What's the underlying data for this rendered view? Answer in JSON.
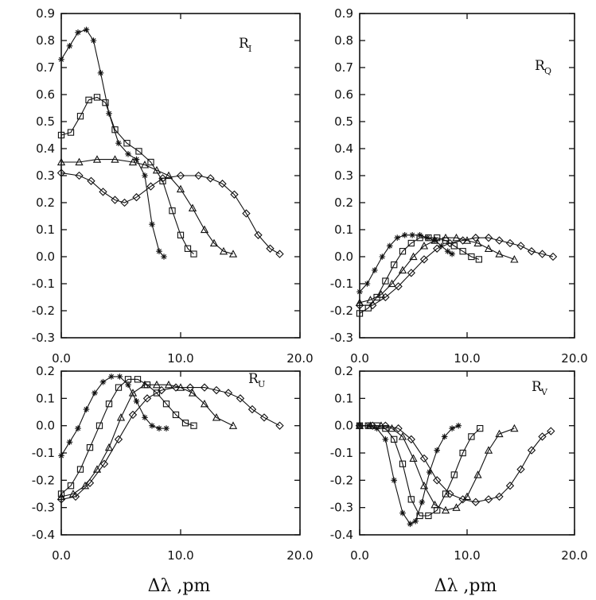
{
  "chart_data": [
    {
      "type": "line",
      "title": "R",
      "subscript": "I",
      "xlabel": "",
      "ylabel": "",
      "xlim": [
        0,
        20
      ],
      "ylim": [
        -0.3,
        0.9
      ],
      "xticks": [
        "0.0",
        "10.0",
        "20.0"
      ],
      "yticks": [
        "-0.3",
        "-0.2",
        "-0.1",
        "0.0",
        "0.1",
        "0.2",
        "0.3",
        "0.4",
        "0.5",
        "0.6",
        "0.7",
        "0.8",
        "0.9"
      ],
      "series": [
        {
          "name": "asterisk",
          "marker": "star",
          "x": [
            0,
            0.7,
            1.4,
            2.1,
            2.7,
            3.3,
            4.0,
            4.8,
            5.6,
            6.3,
            7.0,
            7.6,
            8.2,
            8.6
          ],
          "y": [
            0.73,
            0.78,
            0.83,
            0.84,
            0.8,
            0.68,
            0.53,
            0.42,
            0.38,
            0.36,
            0.3,
            0.12,
            0.02,
            0.0
          ]
        },
        {
          "name": "square",
          "marker": "square",
          "x": [
            0,
            0.8,
            1.6,
            2.3,
            3.0,
            3.7,
            4.5,
            5.5,
            6.5,
            7.5,
            8.5,
            9.3,
            10.0,
            10.6,
            11.1
          ],
          "y": [
            0.45,
            0.46,
            0.52,
            0.58,
            0.59,
            0.57,
            0.47,
            0.42,
            0.39,
            0.35,
            0.28,
            0.17,
            0.08,
            0.03,
            0.01
          ]
        },
        {
          "name": "triangle",
          "marker": "triangle",
          "x": [
            0,
            1.5,
            3.0,
            4.5,
            6.0,
            7.0,
            8.0,
            9.0,
            10.0,
            11.0,
            12.0,
            12.8,
            13.6,
            14.4
          ],
          "y": [
            0.35,
            0.35,
            0.36,
            0.36,
            0.35,
            0.34,
            0.32,
            0.3,
            0.25,
            0.18,
            0.1,
            0.05,
            0.02,
            0.01
          ]
        },
        {
          "name": "diamond",
          "marker": "diamond",
          "x": [
            0,
            1.5,
            2.5,
            3.5,
            4.5,
            5.3,
            6.3,
            7.5,
            8.5,
            10.0,
            11.5,
            12.5,
            13.5,
            14.5,
            15.5,
            16.5,
            17.5,
            18.3
          ],
          "y": [
            0.31,
            0.3,
            0.28,
            0.24,
            0.21,
            0.2,
            0.22,
            0.26,
            0.29,
            0.3,
            0.3,
            0.29,
            0.27,
            0.23,
            0.16,
            0.08,
            0.03,
            0.01
          ]
        }
      ]
    },
    {
      "type": "line",
      "title": "R",
      "subscript": "Q",
      "xlabel": "",
      "ylabel": "",
      "xlim": [
        0,
        20
      ],
      "ylim": [
        -0.3,
        0.9
      ],
      "xticks": [
        "0.0",
        "10.0",
        "20.0"
      ],
      "yticks": [
        "-0.3",
        "-0.2",
        "-0.1",
        "0.0",
        "0.1",
        "0.2",
        "0.3",
        "0.4",
        "0.5",
        "0.6",
        "0.7",
        "0.8",
        "0.9"
      ],
      "series": [
        {
          "name": "asterisk",
          "marker": "star",
          "x": [
            0,
            0.7,
            1.4,
            2.1,
            2.8,
            3.5,
            4.2,
            4.9,
            5.6,
            6.3,
            7.0,
            7.6,
            8.2,
            8.6
          ],
          "y": [
            -0.13,
            -0.1,
            -0.05,
            0.0,
            0.04,
            0.07,
            0.08,
            0.08,
            0.08,
            0.07,
            0.06,
            0.04,
            0.02,
            0.01
          ]
        },
        {
          "name": "square",
          "marker": "square",
          "x": [
            0,
            0.8,
            1.6,
            2.4,
            3.2,
            4.0,
            4.8,
            5.6,
            6.4,
            7.2,
            8.0,
            8.8,
            9.6,
            10.4,
            11.1
          ],
          "y": [
            -0.21,
            -0.19,
            -0.15,
            -0.09,
            -0.03,
            0.02,
            0.05,
            0.07,
            0.07,
            0.07,
            0.06,
            0.04,
            0.02,
            0.0,
            -0.01
          ]
        },
        {
          "name": "triangle",
          "marker": "triangle",
          "x": [
            0,
            1.0,
            2.0,
            3.0,
            4.0,
            5.0,
            6.0,
            7.0,
            8.0,
            9.0,
            10.0,
            11.0,
            12.0,
            13.0,
            14.4
          ],
          "y": [
            -0.17,
            -0.16,
            -0.14,
            -0.1,
            -0.05,
            0.0,
            0.04,
            0.06,
            0.07,
            0.07,
            0.06,
            0.05,
            0.03,
            0.01,
            -0.01
          ]
        },
        {
          "name": "diamond",
          "marker": "diamond",
          "x": [
            0,
            1.2,
            2.4,
            3.6,
            4.8,
            6.0,
            7.2,
            8.4,
            9.6,
            10.8,
            12.0,
            13.0,
            14.0,
            15.0,
            16.0,
            17.0,
            18.0
          ],
          "y": [
            -0.18,
            -0.18,
            -0.15,
            -0.11,
            -0.06,
            -0.01,
            0.03,
            0.05,
            0.06,
            0.07,
            0.07,
            0.06,
            0.05,
            0.04,
            0.02,
            0.01,
            0.0
          ]
        }
      ]
    },
    {
      "type": "line",
      "title": "R",
      "subscript": "U",
      "xlabel": "Δλ ,pm",
      "ylabel": "",
      "xlim": [
        0,
        20
      ],
      "ylim": [
        -0.4,
        0.2
      ],
      "xticks": [
        "0.0",
        "10.0",
        "20.0"
      ],
      "yticks": [
        "-0.4",
        "-0.3",
        "-0.2",
        "-0.1",
        "0.0",
        "0.1",
        "0.2"
      ],
      "series": [
        {
          "name": "asterisk",
          "marker": "star",
          "x": [
            0,
            0.7,
            1.4,
            2.1,
            2.8,
            3.5,
            4.2,
            4.9,
            5.6,
            6.3,
            7.0,
            7.6,
            8.2,
            8.8
          ],
          "y": [
            -0.11,
            -0.06,
            -0.01,
            0.06,
            0.12,
            0.16,
            0.18,
            0.18,
            0.15,
            0.09,
            0.03,
            0.0,
            -0.01,
            -0.01
          ]
        },
        {
          "name": "square",
          "marker": "square",
          "x": [
            0,
            0.8,
            1.6,
            2.4,
            3.2,
            4.0,
            4.8,
            5.6,
            6.4,
            7.2,
            8.0,
            8.8,
            9.6,
            10.4,
            11.1
          ],
          "y": [
            -0.25,
            -0.22,
            -0.16,
            -0.08,
            0.0,
            0.08,
            0.14,
            0.17,
            0.17,
            0.15,
            0.12,
            0.08,
            0.04,
            0.01,
            0.0
          ]
        },
        {
          "name": "triangle",
          "marker": "triangle",
          "x": [
            0,
            1.0,
            2.0,
            3.0,
            4.0,
            5.0,
            6.0,
            7.0,
            8.0,
            9.0,
            10.0,
            11.0,
            12.0,
            13.0,
            14.4
          ],
          "y": [
            -0.26,
            -0.25,
            -0.22,
            -0.16,
            -0.08,
            0.03,
            0.12,
            0.15,
            0.15,
            0.15,
            0.14,
            0.12,
            0.08,
            0.03,
            0.0
          ]
        },
        {
          "name": "diamond",
          "marker": "diamond",
          "x": [
            0,
            1.2,
            2.4,
            3.6,
            4.8,
            6.0,
            7.2,
            8.4,
            9.6,
            10.8,
            12.0,
            13.0,
            14.0,
            15.0,
            16.0,
            17.0,
            18.3
          ],
          "y": [
            -0.27,
            -0.26,
            -0.21,
            -0.14,
            -0.05,
            0.04,
            0.1,
            0.13,
            0.14,
            0.14,
            0.14,
            0.13,
            0.12,
            0.1,
            0.06,
            0.03,
            0.0
          ]
        }
      ]
    },
    {
      "type": "line",
      "title": "R",
      "subscript": "V",
      "xlabel": "Δλ ,pm",
      "ylabel": "",
      "xlim": [
        0,
        20
      ],
      "ylim": [
        -0.4,
        0.2
      ],
      "xticks": [
        "0.0",
        "10.0",
        "20.0"
      ],
      "yticks": [
        "-0.4",
        "-0.3",
        "-0.2",
        "-0.1",
        "0.0",
        "0.1",
        "0.2"
      ],
      "series": [
        {
          "name": "asterisk",
          "marker": "star",
          "x": [
            0,
            0.8,
            1.6,
            2.4,
            3.2,
            4.0,
            4.7,
            5.2,
            5.8,
            6.5,
            7.2,
            7.9,
            8.6,
            9.2
          ],
          "y": [
            0.0,
            0.0,
            -0.01,
            -0.05,
            -0.2,
            -0.32,
            -0.36,
            -0.35,
            -0.28,
            -0.17,
            -0.09,
            -0.04,
            -0.01,
            0.0
          ]
        },
        {
          "name": "square",
          "marker": "square",
          "x": [
            0,
            0.8,
            1.6,
            2.4,
            3.2,
            4.0,
            4.8,
            5.6,
            6.4,
            7.2,
            8.0,
            8.8,
            9.6,
            10.4,
            11.2
          ],
          "y": [
            0.0,
            0.0,
            0.0,
            -0.01,
            -0.05,
            -0.14,
            -0.27,
            -0.33,
            -0.33,
            -0.31,
            -0.25,
            -0.18,
            -0.1,
            -0.04,
            -0.01
          ]
        },
        {
          "name": "triangle",
          "marker": "triangle",
          "x": [
            0,
            1.0,
            2.0,
            3.0,
            4.0,
            5.0,
            6.0,
            7.0,
            8.0,
            9.0,
            10.0,
            11.0,
            12.0,
            13.0,
            14.4
          ],
          "y": [
            0.0,
            0.0,
            0.0,
            -0.01,
            -0.04,
            -0.12,
            -0.22,
            -0.29,
            -0.31,
            -0.3,
            -0.26,
            -0.18,
            -0.09,
            -0.03,
            -0.01
          ]
        },
        {
          "name": "diamond",
          "marker": "diamond",
          "x": [
            0,
            1.2,
            2.4,
            3.6,
            4.8,
            6.0,
            7.2,
            8.4,
            9.6,
            10.8,
            12.0,
            13.0,
            14.0,
            15.0,
            16.0,
            17.0,
            17.8
          ],
          "y": [
            0.0,
            0.0,
            0.0,
            -0.01,
            -0.05,
            -0.12,
            -0.2,
            -0.25,
            -0.27,
            -0.28,
            -0.27,
            -0.26,
            -0.22,
            -0.16,
            -0.09,
            -0.04,
            -0.02
          ]
        }
      ]
    }
  ]
}
